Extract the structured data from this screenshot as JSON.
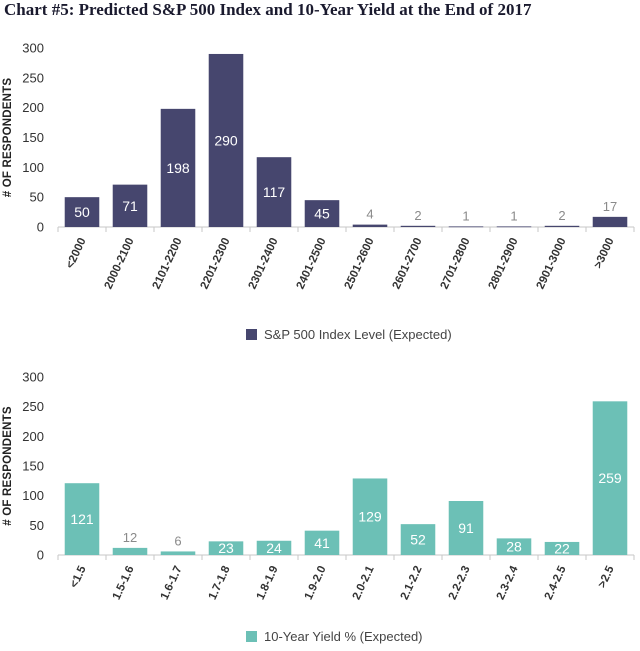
{
  "title": "Chart #5: Predicted S&P 500 Index and 10-Year Yield at the End of 2017",
  "chart_data": [
    {
      "type": "bar",
      "categories": [
        "<2000",
        "2000-2100",
        "2101-2200",
        "2201-2300",
        "2301-2400",
        "2401-2500",
        "2501-2600",
        "2601-2700",
        "2701-2800",
        "2801-2900",
        "2901-3000",
        ">3000"
      ],
      "values": [
        50,
        71,
        198,
        290,
        117,
        45,
        4,
        2,
        1,
        1,
        2,
        17
      ],
      "series_name": "S&P 500 Index Level (Expected)",
      "ylabel": "# OF RESPONDENTS",
      "ylim": [
        0,
        300
      ],
      "yticks": [
        0,
        50,
        100,
        150,
        200,
        250,
        300
      ],
      "color": "#46466e",
      "legend": "bottom-center"
    },
    {
      "type": "bar",
      "categories": [
        "<1.5",
        "1.5-1.6",
        "1.6-1.7",
        "1.7-1.8",
        "1.8-1.9",
        "1.9-2.0",
        "2.0-2.1",
        "2.1-2.2",
        "2.2-2.3",
        "2.3-2.4",
        "2.4-2.5",
        ">2.5"
      ],
      "values": [
        121,
        12,
        6,
        23,
        24,
        41,
        129,
        52,
        91,
        28,
        22,
        259
      ],
      "series_name": "10-Year Yield % (Expected)",
      "ylabel": "# OF RESPONDENTS",
      "ylim": [
        0,
        300
      ],
      "yticks": [
        0,
        50,
        100,
        150,
        200,
        250,
        300
      ],
      "color": "#6cc0b6",
      "legend": "bottom-center"
    }
  ]
}
